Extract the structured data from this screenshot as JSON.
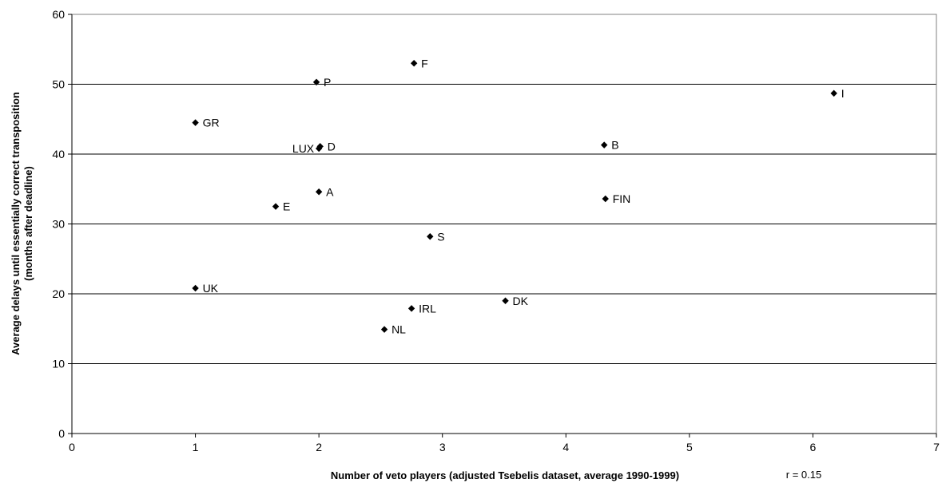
{
  "chart_data": {
    "type": "scatter",
    "xlabel": "Number of veto players (adjusted Tsebelis dataset, average 1990-1999)",
    "ylabel_line1": "Average delays until essentially correct transposition",
    "ylabel_line2": "(months after deadline)",
    "annotation": "r = 0.15",
    "xlim": [
      0,
      7
    ],
    "ylim": [
      0,
      60
    ],
    "x_ticks": [
      0,
      1,
      2,
      3,
      4,
      5,
      6,
      7
    ],
    "y_ticks": [
      0,
      10,
      20,
      30,
      40,
      50,
      60
    ],
    "grid": "horizontal",
    "legend": "none",
    "marker": "diamond",
    "marker_color": "#000000",
    "points": [
      {
        "label": "F",
        "x": 2.77,
        "y": 53.0,
        "label_side": "right"
      },
      {
        "label": "P",
        "x": 1.98,
        "y": 50.3,
        "label_side": "right"
      },
      {
        "label": "I",
        "x": 6.17,
        "y": 48.7,
        "label_side": "right"
      },
      {
        "label": "GR",
        "x": 1.0,
        "y": 44.5,
        "label_side": "right"
      },
      {
        "label": "LUX",
        "x": 2.0,
        "y": 40.8,
        "label_side": "left"
      },
      {
        "label": "D",
        "x": 2.01,
        "y": 41.1,
        "label_side": "right"
      },
      {
        "label": "B",
        "x": 4.31,
        "y": 41.3,
        "label_side": "right"
      },
      {
        "label": "A",
        "x": 2.0,
        "y": 34.6,
        "label_side": "right"
      },
      {
        "label": "FIN",
        "x": 4.32,
        "y": 33.6,
        "label_side": "right"
      },
      {
        "label": "E",
        "x": 1.65,
        "y": 32.5,
        "label_side": "right"
      },
      {
        "label": "S",
        "x": 2.9,
        "y": 28.2,
        "label_side": "right"
      },
      {
        "label": "UK",
        "x": 1.0,
        "y": 20.8,
        "label_side": "right"
      },
      {
        "label": "DK",
        "x": 3.51,
        "y": 19.0,
        "label_side": "right"
      },
      {
        "label": "IRL",
        "x": 2.75,
        "y": 17.9,
        "label_side": "right"
      },
      {
        "label": "NL",
        "x": 2.53,
        "y": 14.9,
        "label_side": "right"
      }
    ]
  }
}
